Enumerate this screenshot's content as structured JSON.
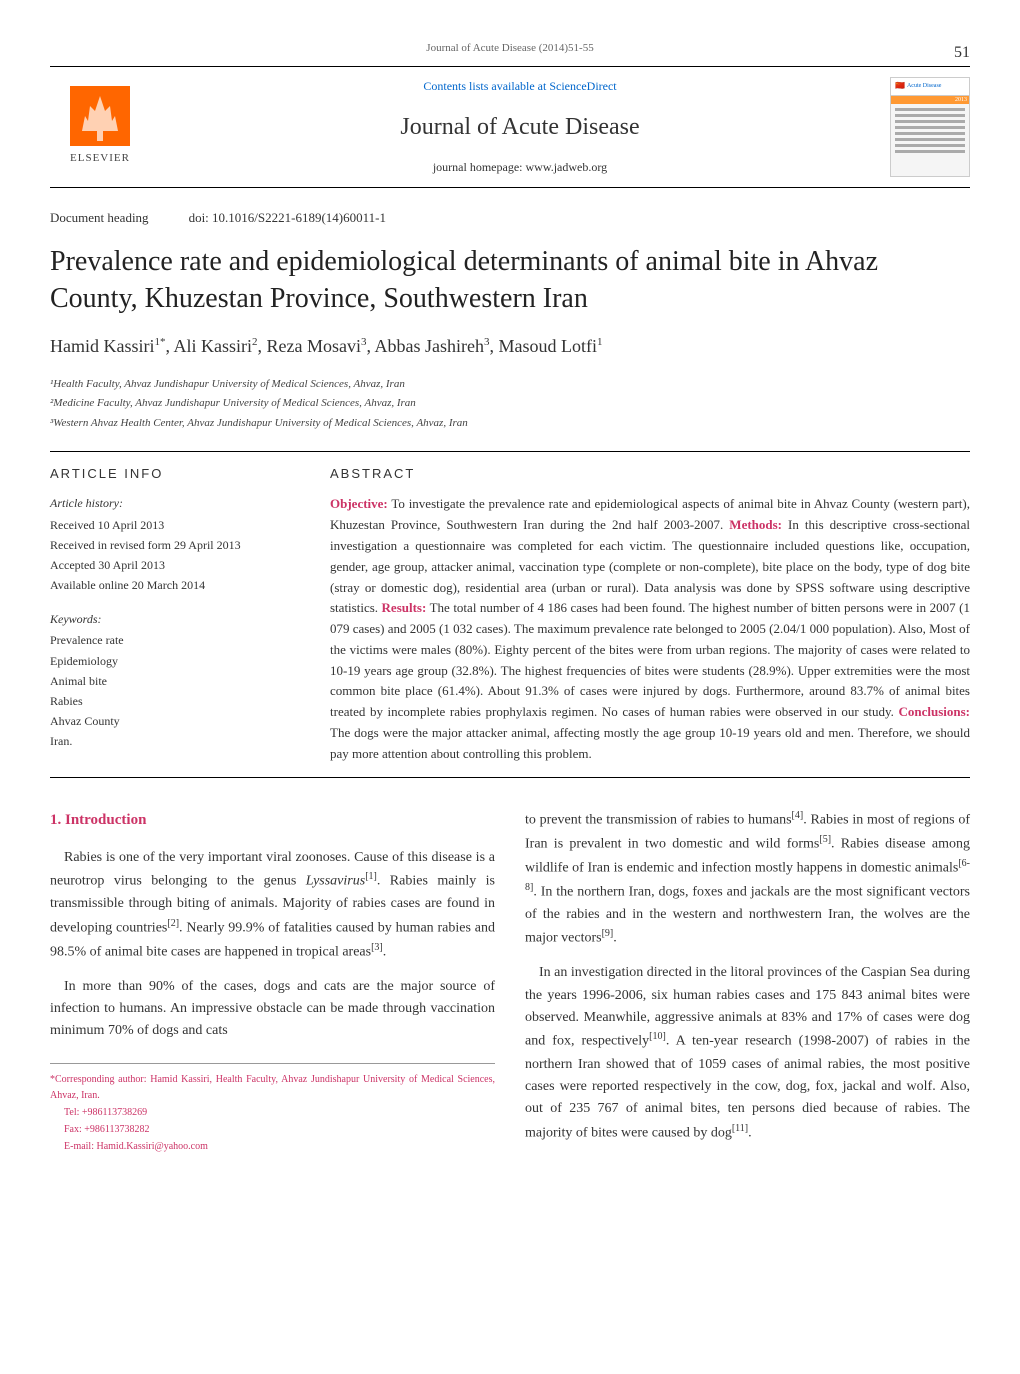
{
  "page_number": "51",
  "journal_ref": "Journal of Acute Disease (2014)51-55",
  "header": {
    "publisher": "ELSEVIER",
    "contents_link": "Contents lists available at ScienceDirect",
    "journal_name": "Journal of Acute Disease",
    "homepage_label": "journal homepage: www.jadweb.org",
    "cover_title": "Acute Disease",
    "cover_year": "2013"
  },
  "doc_heading": {
    "label": "Document heading",
    "doi": "doi: 10.1016/S2221-6189(14)60011-1"
  },
  "title": "Prevalence rate and epidemiological determinants of animal bite in Ahvaz County, Khuzestan Province, Southwestern Iran",
  "authors_html": "Hamid Kassiri<sup>1*</sup>, Ali Kassiri<sup>2</sup>, Reza Mosavi<sup>3</sup>, Abbas Jashireh<sup>3</sup>, Masoud Lotfi<sup>1</sup>",
  "affiliations": [
    "¹Health Faculty, Ahvaz Jundishapur University of Medical Sciences, Ahvaz, Iran",
    "²Medicine Faculty, Ahvaz Jundishapur University of Medical Sciences, Ahvaz, Iran",
    "³Western Ahvaz Health Center, Ahvaz Jundishapur University of Medical Sciences, Ahvaz, Iran"
  ],
  "article_info": {
    "heading": "ARTICLE INFO",
    "history_label": "Article history:",
    "history": [
      "Received 10 April 2013",
      "Received in revised form 29 April 2013",
      "Accepted 30 April 2013",
      "Available online 20 March 2014"
    ],
    "keywords_label": "Keywords:",
    "keywords": [
      "Prevalence rate",
      "Epidemiology",
      "Animal bite",
      "Rabies",
      "Ahvaz County",
      "Iran."
    ]
  },
  "abstract": {
    "heading": "ABSTRACT",
    "labels": {
      "objective": "Objective:",
      "methods": "Methods:",
      "results": "Results:",
      "conclusions": "Conclusions:"
    },
    "objective": " To investigate the prevalence rate and epidemiological aspects of animal bite in Ahvaz County (western part), Khuzestan Province, Southwestern Iran during the 2nd half 2003-2007. ",
    "methods": " In this descriptive cross-sectional investigation a questionnaire was completed for each victim. The questionnaire included questions like, occupation, gender, age group, attacker animal, vaccination type (complete or non-complete), bite place on the body, type of dog bite (stray or domestic dog), residential area (urban or rural). Data analysis was done by SPSS software using descriptive statistics. ",
    "results": " The total number of 4 186 cases had been found. The highest number of bitten persons were in 2007 (1 079 cases) and 2005 (1 032 cases). The maximum prevalence rate belonged to 2005 (2.04/1 000 population). Also, Most of the victims were males (80%). Eighty percent of the bites were from urban regions. The majority of cases were related to 10-19 years age group (32.8%). The highest frequencies of bites were students (28.9%). Upper extremities were the most common bite place (61.4%). About 91.3% of cases were injured by dogs. Furthermore, around 83.7% of animal bites treated by incomplete rabies prophylaxis regimen. No cases of human rabies were observed in our study. ",
    "conclusions": " The dogs were the major attacker animal, affecting mostly the age group 10-19 years old and men. Therefore, we should pay more attention about controlling this problem."
  },
  "body": {
    "intro_title": "1. Introduction",
    "left_paragraphs": [
      "Rabies is one of the very important viral zoonoses. Cause of this disease is a neurotrop virus belonging to the genus <span class=\"italic\">Lyssavirus</span><span class=\"citation\">[1]</span>. Rabies mainly is transmissible through biting of animals. Majority of rabies cases are found in developing countries<span class=\"citation\">[2]</span>. Nearly 99.9% of fatalities caused by human rabies and 98.5% of animal bite cases are happened in tropical areas<span class=\"citation\">[3]</span>.",
      "In more than 90% of the cases, dogs and cats are the major source of infection to humans. An impressive obstacle can be made through vaccination minimum 70% of dogs and cats"
    ],
    "right_paragraphs": [
      "to prevent the transmission of rabies to humans<span class=\"citation\">[4]</span>. Rabies in most of regions of Iran is prevalent in two domestic and wild forms<span class=\"citation\">[5]</span>. Rabies disease among wildlife of Iran is endemic and infection mostly happens in domestic animals<span class=\"citation\">[6-8]</span>. In the northern Iran, dogs, foxes and jackals are the most significant vectors of the rabies and in the western and northwestern Iran, the wolves are the major vectors<span class=\"citation\">[9]</span>.",
      "In an investigation directed in the litoral provinces of the Caspian Sea during the years 1996-2006, six human rabies cases and 175 843 animal bites were observed. Meanwhile, aggressive animals at 83% and 17% of cases were dog and fox, respectively<span class=\"citation\">[10]</span>. A ten-year research (1998-2007) of rabies in the northern Iran showed that of 1059 cases of animal rabies, the most positive cases were reported respectively in the cow, dog, fox, jackal and wolf. Also, out of 235 767 of animal bites, ten persons died because of rabies. The majority of bites were caused by dog<span class=\"citation\">[11]</span>."
    ]
  },
  "footnote": {
    "corresponding": "*Corresponding author: Hamid Kassiri, Health Faculty, Ahvaz Jundishapur University of Medical Sciences, Ahvaz, Iran.",
    "tel": "Tel: +986113738269",
    "fax": "Fax: +986113738282",
    "email": "E-mail: Hamid.Kassiri@yahoo.com"
  },
  "colors": {
    "accent": "#cc3366",
    "link": "#0066cc",
    "elsevier_orange": "#ff6600"
  }
}
